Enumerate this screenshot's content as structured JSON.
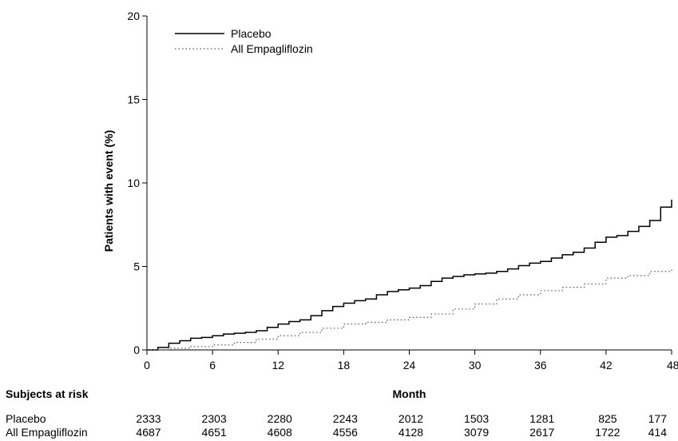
{
  "chart_data": {
    "type": "line",
    "title": "",
    "xlabel": "Month",
    "ylabel": "Patients with event (%)",
    "xlim": [
      0,
      48
    ],
    "ylim": [
      0,
      20
    ],
    "x_ticks": [
      0,
      6,
      12,
      18,
      24,
      30,
      36,
      42,
      48
    ],
    "x_tick_labels": [
      "0",
      "6",
      "12",
      "18",
      "24",
      "30",
      "36",
      "42",
      "48"
    ],
    "y_ticks": [
      0,
      5,
      10,
      15,
      20
    ],
    "y_tick_labels": [
      "0",
      "5",
      "10",
      "15",
      "20"
    ],
    "grid": false,
    "legend_position": "top-left",
    "series": [
      {
        "name": "Placebo",
        "style": "solid",
        "color": "#000000",
        "x": [
          0,
          1,
          2,
          3,
          4,
          5,
          6,
          7,
          8,
          9,
          10,
          11,
          12,
          13,
          14,
          15,
          16,
          17,
          18,
          19,
          20,
          21,
          22,
          23,
          24,
          25,
          26,
          27,
          28,
          29,
          30,
          31,
          32,
          33,
          34,
          35,
          36,
          37,
          38,
          39,
          40,
          41,
          42,
          43,
          44,
          45,
          46,
          47,
          48
        ],
        "y": [
          0,
          0.15,
          0.4,
          0.55,
          0.7,
          0.75,
          0.85,
          0.95,
          1.0,
          1.05,
          1.15,
          1.35,
          1.55,
          1.7,
          1.8,
          2.05,
          2.35,
          2.6,
          2.8,
          2.95,
          3.05,
          3.3,
          3.5,
          3.6,
          3.7,
          3.85,
          4.1,
          4.3,
          4.4,
          4.5,
          4.55,
          4.6,
          4.7,
          4.85,
          5.05,
          5.2,
          5.3,
          5.5,
          5.7,
          5.85,
          6.1,
          6.45,
          6.75,
          6.85,
          7.1,
          7.4,
          7.75,
          8.55,
          9.0
        ]
      },
      {
        "name": "All Empagliflozin",
        "style": "dotted",
        "color": "#555555",
        "x": [
          0,
          2,
          4,
          6,
          8,
          10,
          12,
          14,
          16,
          18,
          20,
          22,
          24,
          26,
          28,
          30,
          32,
          34,
          36,
          38,
          40,
          42,
          44,
          46,
          48
        ],
        "y": [
          0,
          0.1,
          0.2,
          0.3,
          0.45,
          0.65,
          0.85,
          1.05,
          1.3,
          1.55,
          1.65,
          1.8,
          1.95,
          2.15,
          2.45,
          2.75,
          3.05,
          3.3,
          3.55,
          3.75,
          3.95,
          4.3,
          4.45,
          4.7,
          4.95
        ]
      }
    ],
    "risk_table": {
      "title": "Subjects at risk",
      "rows": [
        {
          "label": "Placebo",
          "values": [
            "2333",
            "2303",
            "2280",
            "2243",
            "2012",
            "1503",
            "1281",
            "825",
            "177"
          ]
        },
        {
          "label": "All Empagliflozin",
          "values": [
            "4687",
            "4651",
            "4608",
            "4556",
            "4128",
            "3079",
            "2617",
            "1722",
            "414"
          ]
        }
      ]
    }
  }
}
